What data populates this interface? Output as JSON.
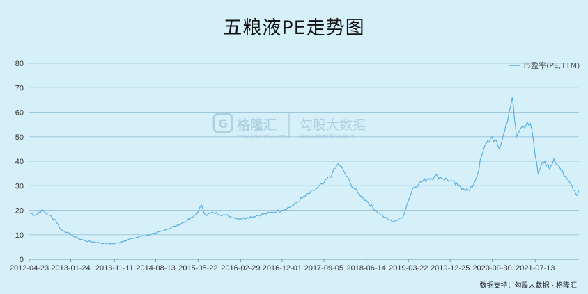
{
  "title": "五粮液PE走势图",
  "footer": "数据支持：勾股大数据 · 格隆汇",
  "watermark": {
    "brand": "格隆汇",
    "brand_url": "www.gelonghui.com",
    "product": "勾股大数据",
    "product_url": "www.gogudata.com"
  },
  "colors": {
    "background": "#d6f0fa",
    "line": "#5aaee0",
    "grid": "#9fc7dc"
  },
  "chart_data": {
    "type": "line",
    "title": "五粮液PE走势图",
    "legend_position": "top-right",
    "grid": true,
    "ylim": [
      0,
      80
    ],
    "y_ticks": [
      0,
      10,
      20,
      30,
      40,
      50,
      60,
      70,
      80
    ],
    "xlim": [
      "2012-04-23",
      "2022-04-30"
    ],
    "x_ticks": [
      "2012-04-23",
      "2013-01-24",
      "2013-11-11",
      "2014-08-13",
      "2015-05-22",
      "2016-02-29",
      "2016-12-01",
      "2017-09-05",
      "2018-06-14",
      "2019-03-22",
      "2019-12-25",
      "2020-09-30",
      "2021-07-13"
    ],
    "series": [
      {
        "name": "市盈率(PE,TTM)",
        "x": [
          "2012-04-23",
          "2012-06-01",
          "2012-07-15",
          "2012-09-01",
          "2012-10-15",
          "2012-11-20",
          "2013-01-01",
          "2013-01-24",
          "2013-03-15",
          "2013-05-01",
          "2013-07-01",
          "2013-09-01",
          "2013-11-11",
          "2014-01-15",
          "2014-03-15",
          "2014-05-15",
          "2014-08-13",
          "2014-10-15",
          "2014-12-20",
          "2015-02-15",
          "2015-04-15",
          "2015-05-22",
          "2015-06-15",
          "2015-07-10",
          "2015-09-01",
          "2015-11-15",
          "2016-02-29",
          "2016-04-15",
          "2016-07-01",
          "2016-09-15",
          "2016-12-01",
          "2017-02-15",
          "2017-04-15",
          "2017-07-01",
          "2017-09-05",
          "2017-11-01",
          "2017-12-10",
          "2018-01-15",
          "2018-03-01",
          "2018-04-20",
          "2018-06-14",
          "2018-08-15",
          "2018-10-15",
          "2018-12-01",
          "2019-01-10",
          "2019-02-10",
          "2019-03-22",
          "2019-04-20",
          "2019-06-01",
          "2019-08-01",
          "2019-10-01",
          "2019-12-25",
          "2020-02-15",
          "2020-03-20",
          "2020-05-01",
          "2020-06-01",
          "2020-06-25",
          "2020-07-20",
          "2020-08-20",
          "2020-09-30",
          "2020-11-15",
          "2020-12-20",
          "2021-01-20",
          "2021-02-10",
          "2021-02-25",
          "2021-03-10",
          "2021-04-15",
          "2021-05-20",
          "2021-06-20",
          "2021-07-13",
          "2021-08-01",
          "2021-08-20",
          "2021-09-15",
          "2021-10-15",
          "2021-11-15",
          "2021-12-20",
          "2022-01-20",
          "2022-02-20",
          "2022-03-15",
          "2022-04-01",
          "2022-04-15",
          "2022-04-28"
        ],
        "y": [
          19,
          18,
          20,
          18,
          16,
          12,
          11,
          10,
          8.5,
          7.5,
          7,
          6.5,
          6.3,
          7.5,
          8.5,
          9.5,
          10.5,
          12,
          13.5,
          15,
          17,
          19.5,
          22,
          18,
          19,
          18,
          16.5,
          17,
          18,
          19,
          20,
          22,
          25,
          28,
          31,
          35,
          39,
          36,
          31,
          27,
          24,
          20,
          17,
          15.5,
          16,
          17,
          24,
          29,
          31,
          33,
          34,
          32,
          30,
          29,
          28,
          31,
          35,
          42,
          47,
          50,
          45,
          52,
          60,
          66,
          57,
          50,
          54,
          56,
          53,
          42,
          35,
          38,
          40,
          37,
          41,
          38,
          34,
          32,
          30,
          28,
          26,
          28
        ]
      }
    ]
  }
}
